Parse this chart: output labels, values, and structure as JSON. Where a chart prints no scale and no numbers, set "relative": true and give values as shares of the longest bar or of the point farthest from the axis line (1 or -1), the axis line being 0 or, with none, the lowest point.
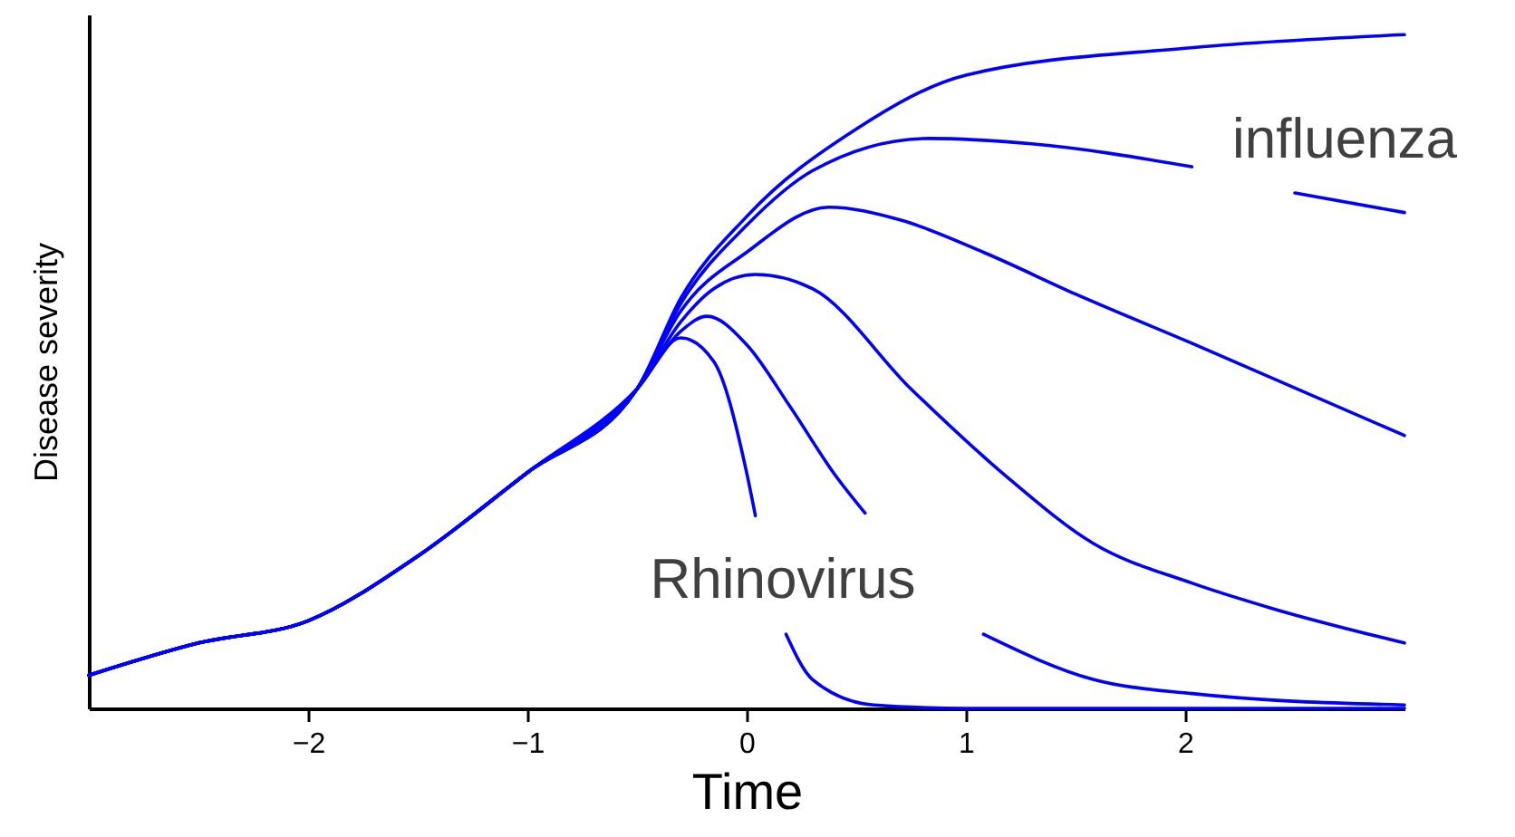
{
  "chart_data": {
    "type": "line",
    "relative": true,
    "xlabel": "Time",
    "ylabel": "Disease severity",
    "xlim": [
      -3,
      3
    ],
    "xticks": [
      -2,
      -1,
      0,
      1,
      2
    ],
    "grid": false,
    "marker": "none",
    "line_style": "solid",
    "annotations": [
      "influenza",
      "Rhinovirus"
    ],
    "series": [
      {
        "color": "#0000ff",
        "x": [
          -3,
          -2.5,
          -2,
          -1.5,
          -1,
          -0.5,
          -0.3,
          -0.15,
          0,
          0.04,
          0.1,
          0.18,
          0.3,
          0.58,
          1,
          2,
          3
        ],
        "values": [
          0.049,
          0.097,
          0.13,
          0.226,
          0.35,
          0.474,
          0.55,
          0.515,
          0.35,
          0.286,
          null,
          0.11,
          0.043,
          0.005,
          0,
          0,
          0
        ]
      },
      {
        "color": "#0000ff",
        "x": [
          -3,
          -2.5,
          -2,
          -1.5,
          -1,
          -0.5,
          -0.3,
          -0.18,
          0,
          0.2,
          0.4,
          0.54,
          0.8,
          1.08,
          1.58,
          2.03,
          3
        ],
        "values": [
          0.049,
          0.097,
          0.13,
          0.226,
          0.35,
          0.474,
          0.56,
          0.582,
          0.54,
          0.447,
          0.348,
          0.29,
          null,
          0.11,
          0.043,
          0.022,
          0.005
        ]
      },
      {
        "color": "#0000ff",
        "x": [
          -3,
          -2.5,
          -2,
          -1.5,
          -1,
          -0.5,
          -0.3,
          -0.15,
          0.04,
          0.3,
          0.75,
          1.2,
          1.58,
          2.03,
          2.4,
          3
        ],
        "values": [
          0.049,
          0.097,
          0.13,
          0.226,
          0.35,
          0.474,
          0.574,
          0.623,
          0.644,
          0.623,
          0.474,
          0.34,
          0.245,
          0.186,
          0.148,
          0.097
        ]
      },
      {
        "color": "#0000ff",
        "x": [
          -3,
          -2.5,
          -2,
          -1.5,
          -1,
          -0.5,
          -0.3,
          0,
          0.375,
          0.7,
          1.08,
          1.5,
          2.03,
          3
        ],
        "values": [
          0.049,
          0.097,
          0.13,
          0.226,
          0.35,
          0.474,
          0.59,
          0.677,
          0.744,
          0.725,
          0.677,
          0.615,
          0.542,
          0.405
        ]
      },
      {
        "color": "#0000ff",
        "x": [
          -3,
          -2.5,
          -2,
          -1.5,
          -1,
          -0.5,
          -0.3,
          0,
          0.3,
          0.83,
          1.3,
          2.03,
          2.3,
          2.5,
          3
        ],
        "values": [
          0.049,
          0.097,
          0.13,
          0.226,
          0.35,
          0.474,
          0.601,
          0.717,
          0.798,
          0.846,
          0.838,
          0.804,
          null,
          0.765,
          0.736
        ]
      },
      {
        "color": "#0000ff",
        "x": [
          -3,
          -2.5,
          -2,
          -1.5,
          -1,
          -0.5,
          -0.3,
          0,
          0.5,
          1,
          2,
          3
        ],
        "values": [
          0.049,
          0.097,
          0.13,
          0.226,
          0.35,
          0.474,
          0.609,
          0.73,
          0.86,
          0.94,
          0.98,
          1
        ]
      }
    ]
  }
}
